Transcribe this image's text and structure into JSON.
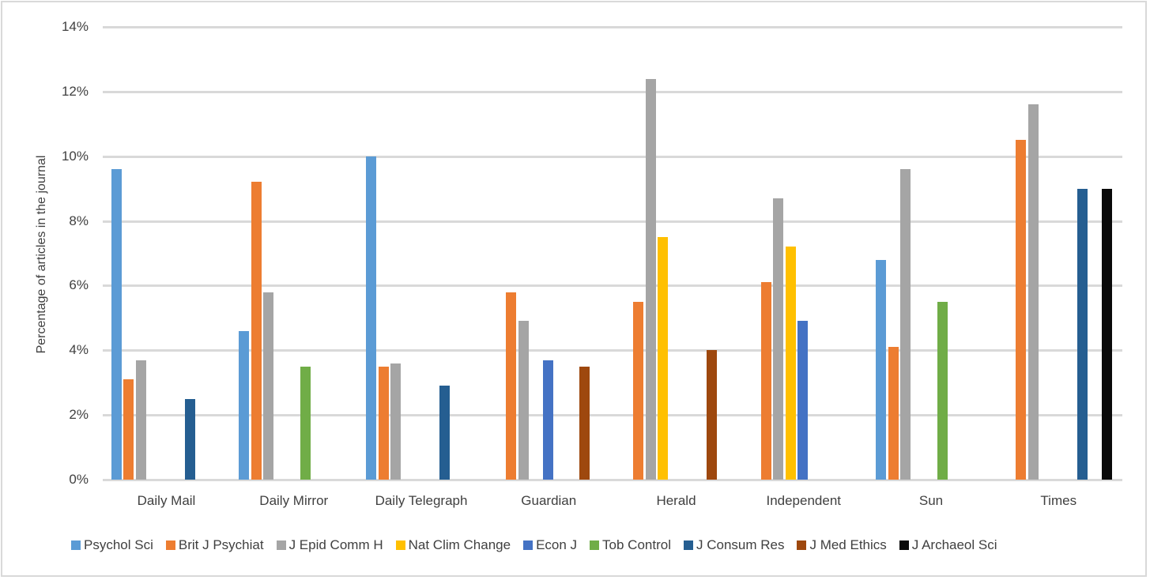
{
  "chart_data": {
    "type": "bar",
    "title": "",
    "xlabel": "",
    "ylabel": "Percentage of articles in the journal",
    "ylim": [
      0,
      14
    ],
    "yticks": [
      "0%",
      "2%",
      "4%",
      "6%",
      "8%",
      "10%",
      "12%",
      "14%"
    ],
    "grid": true,
    "legend_position": "bottom",
    "categories": [
      "Daily Mail",
      "Daily Mirror",
      "Daily Telegraph",
      "Guardian",
      "Herald",
      "Independent",
      "Sun",
      "Times"
    ],
    "series": [
      {
        "name": "Psychol Sci",
        "color": "#5b9bd5",
        "values": [
          9.6,
          4.6,
          10.0,
          0,
          0,
          0,
          6.8,
          0
        ]
      },
      {
        "name": "Brit J Psychiat",
        "color": "#ed7d31",
        "values": [
          3.1,
          9.2,
          3.5,
          5.8,
          5.5,
          6.1,
          4.1,
          10.5
        ]
      },
      {
        "name": "J Epid Comm H",
        "color": "#a5a5a5",
        "values": [
          3.7,
          5.8,
          3.6,
          4.9,
          12.4,
          8.7,
          9.6,
          11.6
        ]
      },
      {
        "name": "Nat Clim Change",
        "color": "#ffc000",
        "values": [
          0,
          0,
          0,
          0,
          7.5,
          7.2,
          0,
          0
        ]
      },
      {
        "name": "Econ J",
        "color": "#4472c4",
        "values": [
          0,
          0,
          0,
          3.7,
          0,
          4.9,
          0,
          0
        ]
      },
      {
        "name": "Tob Control",
        "color": "#70ad47",
        "values": [
          0,
          3.5,
          0,
          0,
          0,
          0,
          5.5,
          0
        ]
      },
      {
        "name": "J Consum Res",
        "color": "#255e91",
        "values": [
          2.5,
          0,
          2.9,
          0,
          0,
          0,
          0,
          9.0
        ]
      },
      {
        "name": "J Med Ethics",
        "color": "#9e480e",
        "values": [
          0,
          0,
          0,
          3.5,
          4.0,
          0,
          0,
          0
        ]
      },
      {
        "name": "J Archaeol Sci",
        "color": "#0a0a0a",
        "values": [
          0,
          0,
          0,
          0,
          0,
          0,
          0,
          9.0
        ]
      }
    ]
  }
}
